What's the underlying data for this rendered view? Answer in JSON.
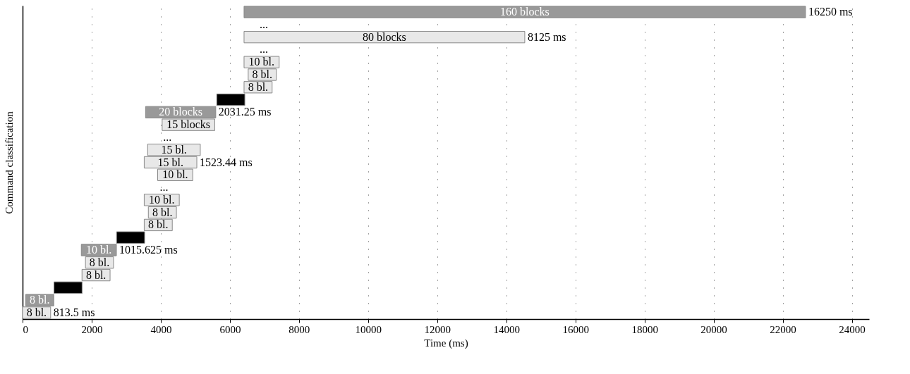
{
  "chart_data": {
    "type": "bar",
    "orientation": "horizontal",
    "xlabel": "Time (ms)",
    "ylabel": "Command classification",
    "categories": [
      "160 blocks",
      null,
      "80 blocks",
      null,
      "10 bl.",
      "8 bl.",
      "8 bl.",
      null,
      "20 blocks",
      "15 blocks",
      null,
      "15 bl.",
      "15 bl.",
      "10 bl.",
      null,
      "10 bl.",
      "8 bl.",
      "8 bl.",
      null,
      "10 bl.",
      "8 bl.",
      "8 bl.",
      null,
      "8 bl.",
      "8 bl."
    ],
    "base": [
      6410,
      null,
      6410,
      null,
      6410,
      6530,
      6410,
      5620,
      3560,
      4040,
      null,
      3620,
      3520,
      3910,
      null,
      3520,
      3640,
      3520,
      2720,
      1700,
      1820,
      1720,
      910,
      90,
      0
    ],
    "values": [
      16250,
      null,
      8125,
      null,
      1015.625,
      812.5,
      812.5,
      812.5,
      2031.25,
      1523.44,
      null,
      1523.44,
      1523.44,
      1015.625,
      null,
      1015.625,
      812.5,
      812.5,
      812.5,
      1015.625,
      812.5,
      812.5,
      812.5,
      812.5,
      812.5
    ],
    "colors": [
      "#999999",
      "#e8e8e8",
      "#e8e8e8",
      "#e8e8e8",
      "#e8e8e8",
      "#e8e8e8",
      "#e8e8e8",
      "#000000",
      "#999999",
      "#e8e8e8",
      "#e8e8e8",
      "#e8e8e8",
      "#e8e8e8",
      "#e8e8e8",
      "#e8e8e8",
      "#e8e8e8",
      "#e8e8e8",
      "#e8e8e8",
      "#000000",
      "#999999",
      "#e8e8e8",
      "#e8e8e8",
      "#000000",
      "#999999",
      "#e8e8e8"
    ],
    "annotations": [
      {
        "text": "16250 ms",
        "x": 22660
      },
      "...",
      {
        "text": "8125 ms",
        "x": 14535
      },
      "...",
      {
        "text": "2031.25 ms",
        "x": 5591.25
      },
      "...",
      {
        "text": "1523.44 ms",
        "x": 5043.44
      },
      "...",
      {
        "text": "1015.625 ms",
        "x": 2715.625
      },
      {
        "text": "813.5 ms",
        "x": 812.5
      }
    ],
    "xlim": [
      0,
      24500
    ],
    "xticks": [
      0,
      2000,
      4000,
      6000,
      8000,
      10000,
      12000,
      14000,
      16000,
      18000,
      20000,
      22000,
      24000
    ],
    "grid": "x"
  }
}
